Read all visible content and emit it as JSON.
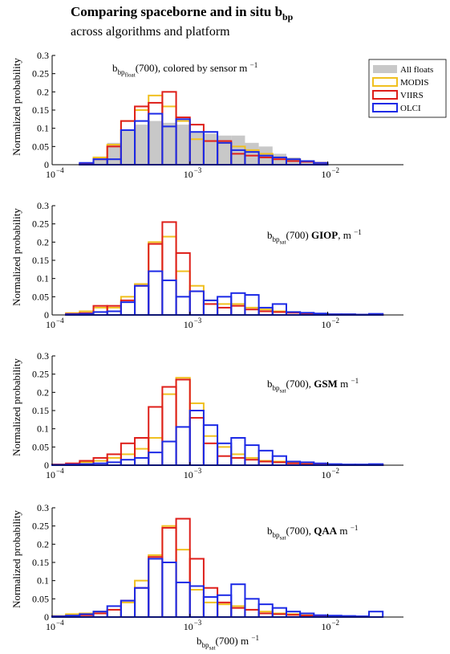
{
  "title": [
    {
      "text": "Comparing spaceborne and in situ b"
    },
    {
      "text": "bp",
      "style": "sub"
    }
  ],
  "subtitle": "across algorithms and platform",
  "chart_data": [
    {
      "type": "histogram",
      "xscale": "log",
      "ylabel": "Normalized probability",
      "annotation": [
        {
          "text": "b"
        },
        {
          "text": "bp",
          "style": "sub"
        },
        {
          "text": "float",
          "style": "subsub"
        },
        {
          "text": "(700), colored by sensor m "
        },
        {
          "text": "−1",
          "style": "sup"
        }
      ],
      "xlim": [
        0.0001,
        0.0355
      ],
      "ylim": [
        0,
        0.3
      ],
      "xticks": [
        {
          "value": 0.0001,
          "label": "10",
          "exponent": "−4"
        },
        {
          "value": 0.001,
          "label": "10",
          "exponent": "−3"
        },
        {
          "value": 0.01,
          "label": "10",
          "exponent": "−2"
        }
      ],
      "yticks": [
        0,
        0.05,
        0.1,
        0.15,
        0.2,
        0.25,
        0.3
      ],
      "legend": "upper right",
      "bins": [
        0.0001,
        0.00012589,
        0.00015849,
        0.00019953,
        0.00025119,
        0.00031623,
        0.00039811,
        0.00050119,
        0.00063096,
        0.00079433,
        0.001,
        0.0012589,
        0.0015849,
        0.0019953,
        0.0025119,
        0.0031623,
        0.0039811,
        0.0050119,
        0.0063096,
        0.0079433,
        0.01,
        0.012589,
        0.015849,
        0.019953,
        0.025119,
        0.031623
      ],
      "series": [
        {
          "name": "All floats",
          "color": "#c8c8c8",
          "fill": true,
          "values": [
            0,
            0,
            0.003,
            0.015,
            0.06,
            0.095,
            0.11,
            0.12,
            0.115,
            0.11,
            0.09,
            0.085,
            0.08,
            0.08,
            0.06,
            0.05,
            0.03,
            0.02,
            0.01,
            0.005,
            0,
            0,
            0,
            0,
            0
          ]
        },
        {
          "name": "MODIS",
          "color": "#f0c020",
          "values": [
            0,
            0,
            0.002,
            0.02,
            0.055,
            0.12,
            0.15,
            0.19,
            0.16,
            0.12,
            0.07,
            0.065,
            0.06,
            0.05,
            0.04,
            0.03,
            0.02,
            0.015,
            0.01,
            0.005,
            0,
            0,
            0,
            0,
            0
          ]
        },
        {
          "name": "VIIRS",
          "color": "#de1f1a",
          "values": [
            0,
            0,
            0.003,
            0.015,
            0.05,
            0.12,
            0.16,
            0.17,
            0.2,
            0.13,
            0.11,
            0.065,
            0.065,
            0.03,
            0.025,
            0.02,
            0.015,
            0.01,
            0.008,
            0.005,
            0,
            0,
            0,
            0,
            0
          ]
        },
        {
          "name": "OLCI",
          "color": "#1c2ae6",
          "values": [
            0,
            0,
            0.005,
            0.015,
            0.015,
            0.095,
            0.12,
            0.14,
            0.105,
            0.125,
            0.09,
            0.09,
            0.06,
            0.04,
            0.035,
            0.025,
            0.02,
            0.015,
            0.01,
            0.005,
            0,
            0,
            0,
            0,
            0
          ]
        }
      ]
    },
    {
      "type": "histogram",
      "xscale": "log",
      "ylabel": "Normalized probability",
      "annotation": [
        {
          "text": "b"
        },
        {
          "text": "bp",
          "style": "sub"
        },
        {
          "text": "sat",
          "style": "subsub"
        },
        {
          "text": "(700) "
        },
        {
          "text": "GIOP",
          "style": "bold"
        },
        {
          "text": ", m "
        },
        {
          "text": "−1",
          "style": "sup"
        }
      ],
      "xlim": [
        0.0001,
        0.0355
      ],
      "ylim": [
        0,
        0.3
      ],
      "xticks": [
        {
          "value": 0.0001,
          "label": "10",
          "exponent": "−4"
        },
        {
          "value": 0.001,
          "label": "10",
          "exponent": "−3"
        },
        {
          "value": 0.01,
          "label": "10",
          "exponent": "−2"
        }
      ],
      "yticks": [
        0,
        0.05,
        0.1,
        0.15,
        0.2,
        0.25,
        0.3
      ],
      "bins": [
        0.0001,
        0.00012589,
        0.00015849,
        0.00019953,
        0.00025119,
        0.00031623,
        0.00039811,
        0.00050119,
        0.00063096,
        0.00079433,
        0.001,
        0.0012589,
        0.0015849,
        0.0019953,
        0.0025119,
        0.0031623,
        0.0039811,
        0.0050119,
        0.0063096,
        0.0079433,
        0.01,
        0.012589,
        0.015849,
        0.019953,
        0.025119,
        0.031623
      ],
      "series": [
        {
          "color": "#f0c020",
          "values": [
            0,
            0.005,
            0.01,
            0.02,
            0.02,
            0.05,
            0.085,
            0.2,
            0.215,
            0.12,
            0.08,
            0.04,
            0.03,
            0.03,
            0.02,
            0.015,
            0.01,
            0.008,
            0.005,
            0.003,
            0.002,
            0.002,
            0.001,
            0.002,
            0
          ]
        },
        {
          "color": "#de1f1a",
          "values": [
            0,
            0.003,
            0.005,
            0.025,
            0.025,
            0.04,
            0.08,
            0.195,
            0.255,
            0.17,
            0.065,
            0.03,
            0.02,
            0.025,
            0.015,
            0.01,
            0.008,
            0.006,
            0.003,
            0.002,
            0.001,
            0.001,
            0.001,
            0.001,
            0
          ]
        },
        {
          "color": "#1c2ae6",
          "values": [
            0,
            0.002,
            0.003,
            0.008,
            0.01,
            0.035,
            0.08,
            0.12,
            0.095,
            0.05,
            0.065,
            0.04,
            0.05,
            0.06,
            0.055,
            0.02,
            0.03,
            0.008,
            0.006,
            0.004,
            0.002,
            0.002,
            0.001,
            0.003,
            0
          ]
        }
      ]
    },
    {
      "type": "histogram",
      "xscale": "log",
      "ylabel": "Normalized probability",
      "annotation": [
        {
          "text": "b"
        },
        {
          "text": "bp",
          "style": "sub"
        },
        {
          "text": "sat",
          "style": "subsub"
        },
        {
          "text": "(700), "
        },
        {
          "text": "GSM",
          "style": "bold"
        },
        {
          "text": " m "
        },
        {
          "text": "−1",
          "style": "sup"
        }
      ],
      "xlim": [
        0.0001,
        0.0355
      ],
      "ylim": [
        0,
        0.3
      ],
      "xticks": [
        {
          "value": 0.0001,
          "label": "10",
          "exponent": "−4"
        },
        {
          "value": 0.001,
          "label": "10",
          "exponent": "−3"
        },
        {
          "value": 0.01,
          "label": "10",
          "exponent": "−2"
        }
      ],
      "yticks": [
        0,
        0.05,
        0.1,
        0.15,
        0.2,
        0.25,
        0.3
      ],
      "bins": [
        0.0001,
        0.00012589,
        0.00015849,
        0.00019953,
        0.00025119,
        0.00031623,
        0.00039811,
        0.00050119,
        0.00063096,
        0.00079433,
        0.001,
        0.0012589,
        0.0015849,
        0.0019953,
        0.0025119,
        0.0031623,
        0.0039811,
        0.0050119,
        0.0063096,
        0.0079433,
        0.01,
        0.012589,
        0.015849,
        0.019953,
        0.025119,
        0.031623
      ],
      "series": [
        {
          "color": "#f0c020",
          "values": [
            0.002,
            0.004,
            0.008,
            0.012,
            0.02,
            0.03,
            0.045,
            0.075,
            0.195,
            0.24,
            0.17,
            0.08,
            0.05,
            0.03,
            0.02,
            0.012,
            0.01,
            0.006,
            0.004,
            0.003,
            0.002,
            0.001,
            0.001,
            0.002,
            0
          ]
        },
        {
          "color": "#de1f1a",
          "values": [
            0.002,
            0.005,
            0.012,
            0.02,
            0.03,
            0.06,
            0.075,
            0.16,
            0.215,
            0.235,
            0.13,
            0.06,
            0.025,
            0.02,
            0.015,
            0.01,
            0.008,
            0.005,
            0.003,
            0.002,
            0.001,
            0.001,
            0.001,
            0.001,
            0
          ]
        },
        {
          "color": "#1c2ae6",
          "values": [
            0.001,
            0.002,
            0.003,
            0.005,
            0.008,
            0.015,
            0.02,
            0.035,
            0.065,
            0.105,
            0.15,
            0.11,
            0.06,
            0.075,
            0.055,
            0.04,
            0.025,
            0.01,
            0.008,
            0.005,
            0.003,
            0.002,
            0.002,
            0.003,
            0
          ]
        }
      ]
    },
    {
      "type": "histogram",
      "xscale": "log",
      "ylabel": "Normalized probability",
      "annotation": [
        {
          "text": "b"
        },
        {
          "text": "bp",
          "style": "sub"
        },
        {
          "text": "sat",
          "style": "subsub"
        },
        {
          "text": "(700), "
        },
        {
          "text": "QAA",
          "style": "bold"
        },
        {
          "text": " m "
        },
        {
          "text": "−1",
          "style": "sup"
        }
      ],
      "xlabel": [
        {
          "text": "b"
        },
        {
          "text": "bp",
          "style": "sub"
        },
        {
          "text": "sat",
          "style": "subsub"
        },
        {
          "text": "(700) m "
        },
        {
          "text": "−1",
          "style": "sup"
        }
      ],
      "xlim": [
        0.0001,
        0.0355
      ],
      "ylim": [
        0,
        0.3
      ],
      "xticks": [
        {
          "value": 0.0001,
          "label": "10",
          "exponent": "−4"
        },
        {
          "value": 0.001,
          "label": "10",
          "exponent": "−3"
        },
        {
          "value": 0.01,
          "label": "10",
          "exponent": "−2"
        }
      ],
      "yticks": [
        0,
        0.05,
        0.1,
        0.15,
        0.2,
        0.25,
        0.3
      ],
      "bins": [
        0.0001,
        0.00012589,
        0.00015849,
        0.00019953,
        0.00025119,
        0.00031623,
        0.00039811,
        0.00050119,
        0.00063096,
        0.00079433,
        0.001,
        0.0012589,
        0.0015849,
        0.0019953,
        0.0025119,
        0.0031623,
        0.0039811,
        0.0050119,
        0.0063096,
        0.0079433,
        0.01,
        0.012589,
        0.015849,
        0.019953,
        0.025119,
        0.031623
      ],
      "series": [
        {
          "color": "#f0c020",
          "values": [
            0.003,
            0.008,
            0.01,
            0.015,
            0.02,
            0.04,
            0.1,
            0.17,
            0.25,
            0.185,
            0.075,
            0.04,
            0.035,
            0.03,
            0.02,
            0.015,
            0.01,
            0.008,
            0.005,
            0.003,
            0.002,
            0.002,
            0.001,
            0,
            0
          ]
        },
        {
          "color": "#de1f1a",
          "values": [
            0.002,
            0.003,
            0.005,
            0.01,
            0.02,
            0.045,
            0.08,
            0.165,
            0.245,
            0.27,
            0.16,
            0.08,
            0.04,
            0.025,
            0.02,
            0.01,
            0.008,
            0.006,
            0.004,
            0.003,
            0.002,
            0.001,
            0.001,
            0,
            0
          ]
        },
        {
          "color": "#1c2ae6",
          "values": [
            0.002,
            0.004,
            0.008,
            0.015,
            0.03,
            0.045,
            0.08,
            0.16,
            0.15,
            0.095,
            0.085,
            0.055,
            0.06,
            0.09,
            0.05,
            0.035,
            0.025,
            0.015,
            0.01,
            0.005,
            0.004,
            0.003,
            0.002,
            0.015,
            0
          ]
        }
      ]
    }
  ]
}
